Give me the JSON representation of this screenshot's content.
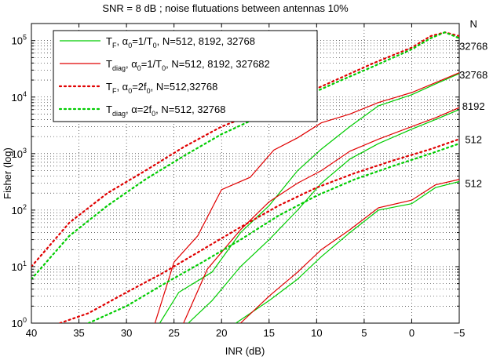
{
  "chart_data": {
    "type": "line",
    "title": "SNR  = 8 dB ; noise flutuations between antennas 10%",
    "xlabel": "INR (dB)",
    "ylabel": "Fisher (log)",
    "xlim": [
      40,
      -5
    ],
    "x_reversed": true,
    "ylim": [
      1,
      200000
    ],
    "y_scale": "log",
    "x_ticks": [
      40,
      35,
      30,
      25,
      20,
      15,
      10,
      5,
      0,
      -5
    ],
    "x_tick_labels": [
      "40",
      "35",
      "30",
      "25",
      "20",
      "15",
      "10",
      "5",
      "0",
      "−5"
    ],
    "y_ticks": [
      1,
      10,
      100,
      1000,
      10000,
      100000
    ],
    "y_tick_labels": [
      {
        "base": "10",
        "exp": "0"
      },
      {
        "base": "10",
        "exp": "1"
      },
      {
        "base": "10",
        "exp": "2"
      },
      {
        "base": "10",
        "exp": "3"
      },
      {
        "base": "10",
        "exp": "4"
      },
      {
        "base": "10",
        "exp": "5"
      }
    ],
    "grid": true,
    "legend_position": "top-left",
    "legend": [
      {
        "parts": [
          [
            "T",
            ""
          ],
          [
            "F",
            "sub"
          ],
          [
            ", α",
            ""
          ],
          [
            "0",
            "sub"
          ],
          [
            "=1/T",
            ""
          ],
          [
            "0",
            "sub"
          ],
          [
            ", N=512, 8192, 32768",
            ""
          ]
        ],
        "color": "#00cc00",
        "dash": "solid"
      },
      {
        "parts": [
          [
            "T",
            ""
          ],
          [
            "diag",
            "sub"
          ],
          [
            ", α",
            ""
          ],
          [
            "0",
            "sub"
          ],
          [
            "=1/T",
            ""
          ],
          [
            "0",
            "sub"
          ],
          [
            ",  N=512, 8192, 327682",
            ""
          ]
        ],
        "color": "#e00000",
        "dash": "solid"
      },
      {
        "parts": [
          [
            "T",
            ""
          ],
          [
            "F",
            "sub"
          ],
          [
            ", α",
            ""
          ],
          [
            "0",
            "sub"
          ],
          [
            "=2f",
            ""
          ],
          [
            "0",
            "sub"
          ],
          [
            ", N=512,32768",
            ""
          ]
        ],
        "color": "#e00000",
        "dash": "dotted"
      },
      {
        "parts": [
          [
            "T",
            ""
          ],
          [
            "diag",
            "sub"
          ],
          [
            ", α=2f",
            ""
          ],
          [
            "0",
            "sub"
          ],
          [
            ", N=512, 32768",
            ""
          ]
        ],
        "color": "#00cc00",
        "dash": "dotted"
      }
    ],
    "annotations": [
      {
        "text": "N",
        "x": -6.5,
        "y": 200000
      },
      {
        "text": "32768",
        "x": -6.5,
        "y": 80000
      },
      {
        "text": "32768",
        "x": -6.5,
        "y": 25000
      },
      {
        "text": "8192",
        "x": -6.5,
        "y": 7000
      },
      {
        "text": "512",
        "x": -6.5,
        "y": 1800
      },
      {
        "text": "512",
        "x": -6.5,
        "y": 300
      }
    ],
    "series": [
      {
        "color": "#00cc00",
        "dash": "solid",
        "x": [
          26.5,
          24.5,
          21,
          18,
          15,
          12,
          9.5,
          6.5,
          3.5,
          0,
          -2.5,
          -5
        ],
        "y": [
          1,
          3.5,
          8,
          40,
          120,
          500,
          1200,
          3000,
          7000,
          11000,
          17000,
          26000
        ]
      },
      {
        "color": "#00cc00",
        "dash": "solid",
        "x": [
          23.5,
          21,
          18,
          15,
          12,
          9.5,
          6.5,
          3.5,
          0,
          -2.5,
          -5
        ],
        "y": [
          1,
          2.5,
          10,
          30,
          100,
          300,
          800,
          1500,
          2700,
          4000,
          6000
        ]
      },
      {
        "color": "#00cc00",
        "dash": "solid",
        "x": [
          18.5,
          15,
          12,
          9.5,
          6.5,
          3.5,
          0,
          -2.5,
          -5
        ],
        "y": [
          1,
          2.5,
          6,
          15,
          40,
          100,
          130,
          250,
          320
        ]
      },
      {
        "color": "#e00000",
        "dash": "solid",
        "x": [
          27,
          25,
          22.5,
          20,
          17,
          14.5,
          12,
          9.5,
          6.5,
          3.5,
          0,
          -2.5,
          -5
        ],
        "y": [
          1,
          12,
          35,
          230,
          380,
          1150,
          1900,
          3500,
          5000,
          8000,
          12000,
          18000,
          27000
        ]
      },
      {
        "color": "#e00000",
        "dash": "solid",
        "x": [
          24,
          21.5,
          18,
          15,
          12,
          9.5,
          6.5,
          3.5,
          0,
          -2.5,
          -5
        ],
        "y": [
          1,
          9,
          45,
          140,
          300,
          500,
          1100,
          1800,
          3000,
          4300,
          6500
        ]
      },
      {
        "color": "#e00000",
        "dash": "solid",
        "x": [
          18,
          15,
          12,
          9.5,
          6.5,
          3.5,
          0,
          -2.5,
          -5
        ],
        "y": [
          1,
          3,
          8,
          20,
          45,
          110,
          150,
          280,
          350
        ]
      },
      {
        "color": "#e00000",
        "dash": "dotted",
        "x": [
          40,
          36,
          32,
          28,
          24,
          20,
          16,
          12,
          8,
          4,
          0,
          -2,
          -3.5,
          -5
        ],
        "y": [
          10,
          60,
          200,
          500,
          1300,
          3000,
          5500,
          10000,
          20000,
          40000,
          75000,
          120000,
          140000,
          120000
        ]
      },
      {
        "color": "#e00000",
        "dash": "dotted",
        "x": [
          37,
          34,
          30,
          26,
          22,
          18,
          14,
          10,
          6,
          2,
          -2,
          -5
        ],
        "y": [
          1,
          1.5,
          3.5,
          8,
          20,
          50,
          120,
          250,
          450,
          750,
          1200,
          1800
        ]
      },
      {
        "color": "#00cc00",
        "dash": "dotted",
        "x": [
          40,
          36,
          32,
          28,
          24,
          20,
          16,
          12,
          8,
          4,
          0,
          -2,
          -3.5,
          -5
        ],
        "y": [
          6,
          35,
          120,
          350,
          900,
          2200,
          4500,
          9000,
          18000,
          35000,
          70000,
          110000,
          140000,
          110000
        ]
      },
      {
        "color": "#00cc00",
        "dash": "dotted",
        "x": [
          34,
          30,
          26,
          22,
          18,
          14,
          10,
          6,
          2,
          -2,
          -5
        ],
        "y": [
          1,
          2,
          5,
          12,
          30,
          80,
          180,
          350,
          600,
          1000,
          1500
        ]
      }
    ]
  }
}
